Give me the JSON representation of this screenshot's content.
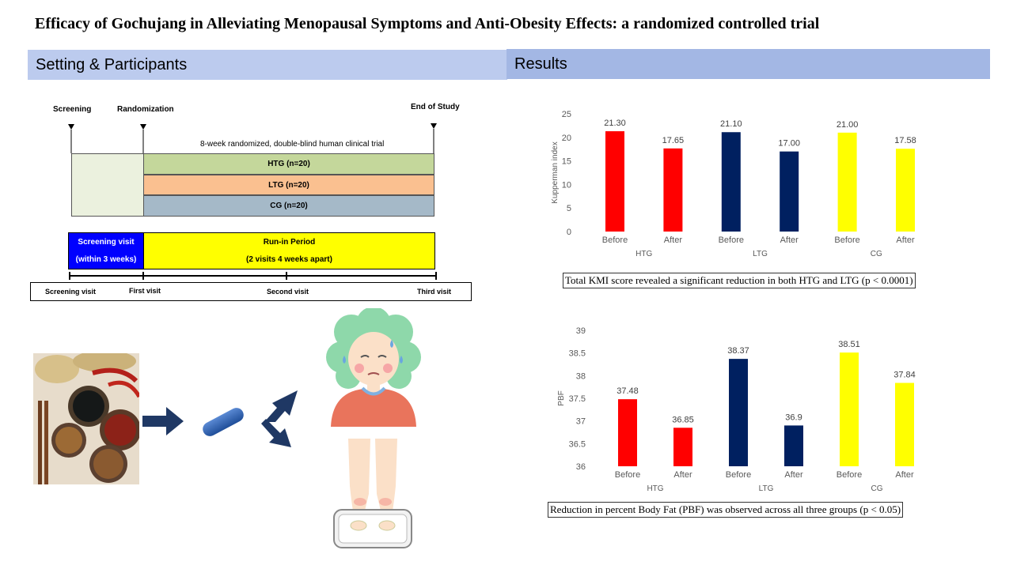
{
  "title": "Efficacy of Gochujang in Alleviating  Menopausal Symptoms and Anti-Obesity Effects: a randomized controlled trial",
  "sections": {
    "left": "Setting & Participants",
    "right": "Results"
  },
  "timeline": {
    "markers": {
      "screening": "Screening",
      "randomization": "Randomization",
      "end": "End of Study"
    },
    "trial_label": "8-week randomized, double-blind human clinical trial",
    "groups": [
      {
        "label": "HTG (n=20)",
        "color": "#c4d79b"
      },
      {
        "label": "LTG (n=20)",
        "color": "#fac090"
      },
      {
        "label": "CG (n=20)",
        "color": "#a5b9c8"
      }
    ],
    "screening_visit_line1": "Screening visit",
    "screening_visit_line2": "(within 3 weeks)",
    "runin_line1": "Run-in Period",
    "runin_line2": "(2 visits 4 weeks apart)",
    "visits": [
      "Screening visit",
      "First visit",
      "Second visit",
      "Third visit"
    ],
    "colors": {
      "screening_box": "#0000ff",
      "runin_box": "#ffff00",
      "pre_box": "#ebf1de"
    }
  },
  "illustration": {
    "icons": [
      "gochujang-photo",
      "arrow-right-icon",
      "capsule-icon",
      "bidirectional-arrow-icon",
      "menopausal-woman-icon",
      "weighing-scale-feet-icon"
    ]
  },
  "chart_data": [
    {
      "type": "bar",
      "title": "",
      "ylabel": "Kupperman index",
      "ylim": [
        0,
        25
      ],
      "yticks": [
        0,
        5,
        10,
        15,
        20,
        25
      ],
      "categories": [
        "Before",
        "After",
        "Before",
        "After",
        "Before",
        "After"
      ],
      "groups": [
        "HTG",
        "LTG",
        "CG"
      ],
      "values": [
        21.3,
        17.65,
        21.1,
        17.0,
        21.0,
        17.58
      ],
      "value_labels": [
        "21.30",
        "17.65",
        "21.10",
        "17.00",
        "21.00",
        "17.58"
      ],
      "colors": [
        "#ff0000",
        "#ff0000",
        "#002060",
        "#002060",
        "#ffff00",
        "#ffff00"
      ],
      "grid": false,
      "caption": "Total KMI score revealed a significant reduction in both HTG and LTG  (p < 0.0001)"
    },
    {
      "type": "bar",
      "title": "",
      "ylabel": "PBF",
      "ylim": [
        36,
        39
      ],
      "yticks": [
        36,
        36.5,
        37,
        37.5,
        38,
        38.5,
        39
      ],
      "categories": [
        "Before",
        "After",
        "Before",
        "After",
        "Before",
        "After"
      ],
      "groups": [
        "HTG",
        "LTG",
        "CG"
      ],
      "values": [
        37.48,
        36.85,
        38.37,
        36.9,
        38.51,
        37.84
      ],
      "value_labels": [
        "37.48",
        "36.85",
        "38.37",
        "36.9",
        "38.51",
        "37.84"
      ],
      "colors": [
        "#ff0000",
        "#ff0000",
        "#002060",
        "#002060",
        "#ffff00",
        "#ffff00"
      ],
      "grid": false,
      "caption": "Reduction in percent Body Fat (PBF) was observed across all three groups (p < 0.05)"
    }
  ]
}
